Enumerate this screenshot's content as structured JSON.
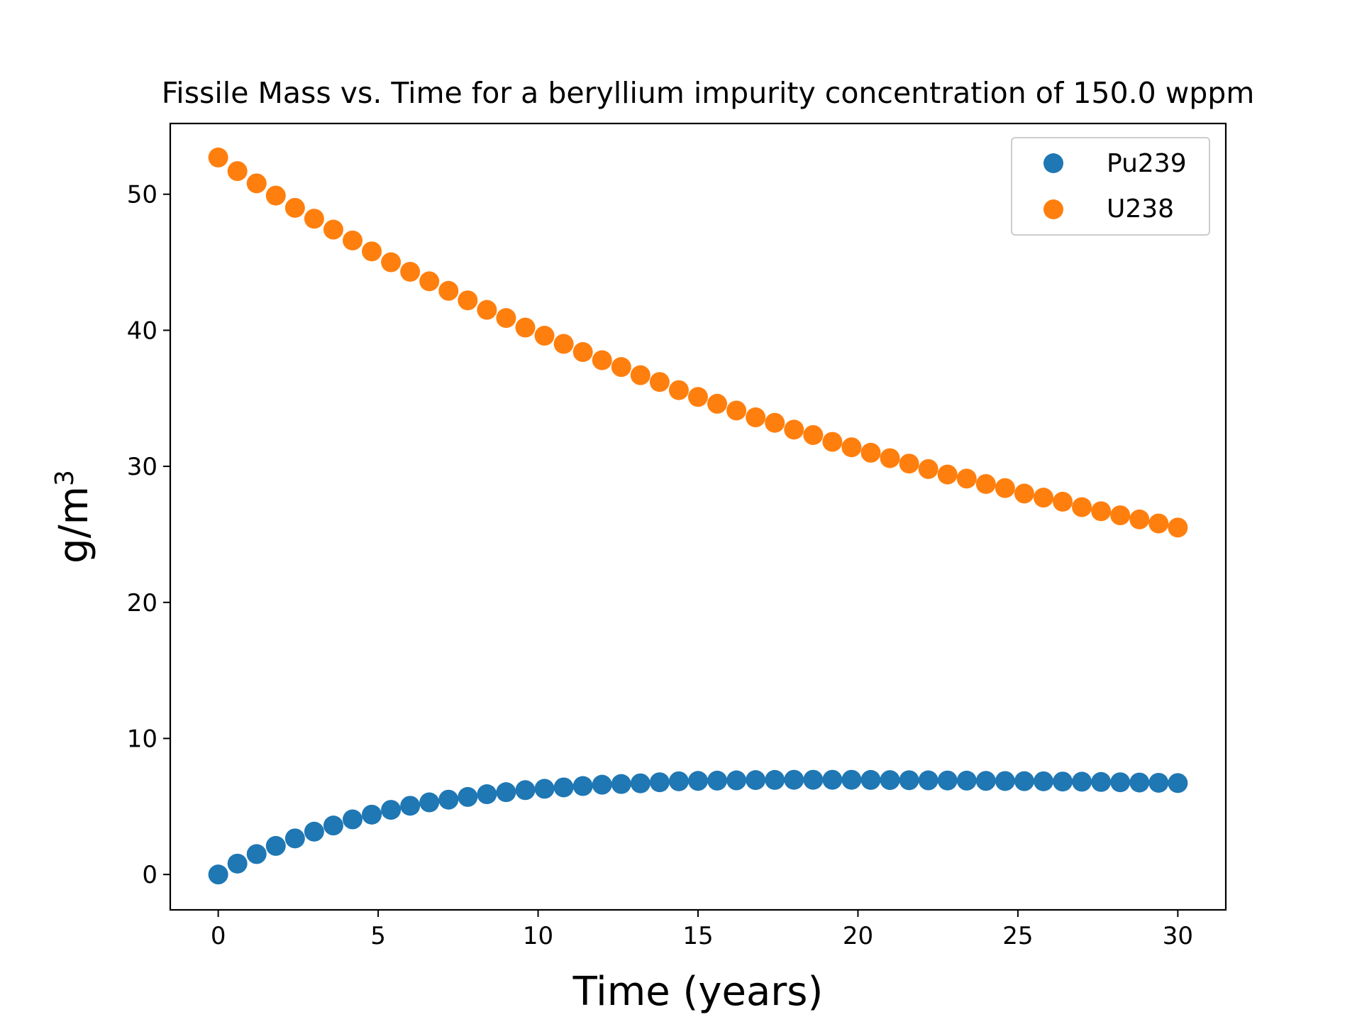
{
  "chart_data": {
    "type": "scatter",
    "title": "Fissile Mass vs. Time for a beryllium impurity concentration of 150.0 wppm",
    "xlabel": "Time (years)",
    "ylabel_base": "g/m",
    "ylabel_superscript": "3",
    "xlim": [
      -1.5,
      31.5
    ],
    "ylim": [
      -2.6,
      55.2
    ],
    "xticks": [
      0,
      5,
      10,
      15,
      20,
      25,
      30
    ],
    "yticks": [
      0,
      10,
      20,
      30,
      40,
      50
    ],
    "grid": false,
    "legend_position": "top-right",
    "x": [
      0,
      0.6,
      1.2,
      1.8,
      2.4,
      3.0,
      3.6,
      4.2,
      4.8,
      5.4,
      6.0,
      6.6,
      7.2,
      7.8,
      8.4,
      9.0,
      9.6,
      10.2,
      10.8,
      11.4,
      12.0,
      12.6,
      13.2,
      13.8,
      14.4,
      15.0,
      15.6,
      16.2,
      16.8,
      17.4,
      18.0,
      18.6,
      19.2,
      19.8,
      20.4,
      21.0,
      21.6,
      22.2,
      22.8,
      23.4,
      24.0,
      24.6,
      25.2,
      25.8,
      26.4,
      27.0,
      27.6,
      28.2,
      28.8,
      29.4,
      30.0
    ],
    "series": [
      {
        "name": "Pu239",
        "color": "#1f77b4",
        "values": [
          0.0,
          0.8,
          1.5,
          2.1,
          2.65,
          3.15,
          3.6,
          4.05,
          4.4,
          4.75,
          5.05,
          5.3,
          5.5,
          5.7,
          5.9,
          6.05,
          6.2,
          6.3,
          6.4,
          6.5,
          6.6,
          6.65,
          6.7,
          6.78,
          6.85,
          6.88,
          6.9,
          6.92,
          6.94,
          6.95,
          6.96,
          6.96,
          6.96,
          6.96,
          6.95,
          6.94,
          6.93,
          6.92,
          6.91,
          6.9,
          6.88,
          6.87,
          6.86,
          6.85,
          6.83,
          6.82,
          6.8,
          6.78,
          6.76,
          6.74,
          6.72
        ]
      },
      {
        "name": "U238",
        "color": "#ff7f0e",
        "values": [
          52.7,
          51.7,
          50.8,
          49.9,
          49.0,
          48.2,
          47.4,
          46.6,
          45.8,
          45.0,
          44.3,
          43.6,
          42.9,
          42.2,
          41.5,
          40.9,
          40.2,
          39.6,
          39.0,
          38.4,
          37.8,
          37.3,
          36.7,
          36.2,
          35.6,
          35.1,
          34.6,
          34.1,
          33.6,
          33.2,
          32.7,
          32.3,
          31.8,
          31.4,
          31.0,
          30.6,
          30.2,
          29.8,
          29.4,
          29.1,
          28.7,
          28.4,
          28.0,
          27.7,
          27.4,
          27.0,
          26.7,
          26.4,
          26.1,
          25.8,
          25.5
        ]
      }
    ]
  }
}
